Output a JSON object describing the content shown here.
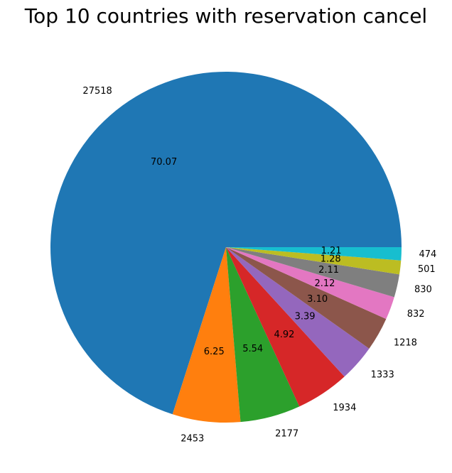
{
  "chart_data": {
    "type": "pie",
    "title": "Top 10 countries with reservation cancel",
    "values": [
      27518,
      2453,
      2177,
      1934,
      1333,
      1218,
      832,
      830,
      501,
      474
    ],
    "labels": [
      "27518",
      "2453",
      "2177",
      "1934",
      "1333",
      "1218",
      "832",
      "830",
      "501",
      "474"
    ],
    "percent_labels": [
      "70.07",
      "6.25",
      "5.54",
      "4.92",
      "3.39",
      "3.10",
      "2.12",
      "2.11",
      "1.28",
      "1.21"
    ],
    "colors": [
      "#1f77b4",
      "#ff7f0e",
      "#2ca02c",
      "#d62728",
      "#9467bd",
      "#8c564b",
      "#e377c2",
      "#7f7f7f",
      "#bcbd22",
      "#17becf"
    ],
    "start_angle_deg": 0,
    "direction": "counterclockwise"
  }
}
